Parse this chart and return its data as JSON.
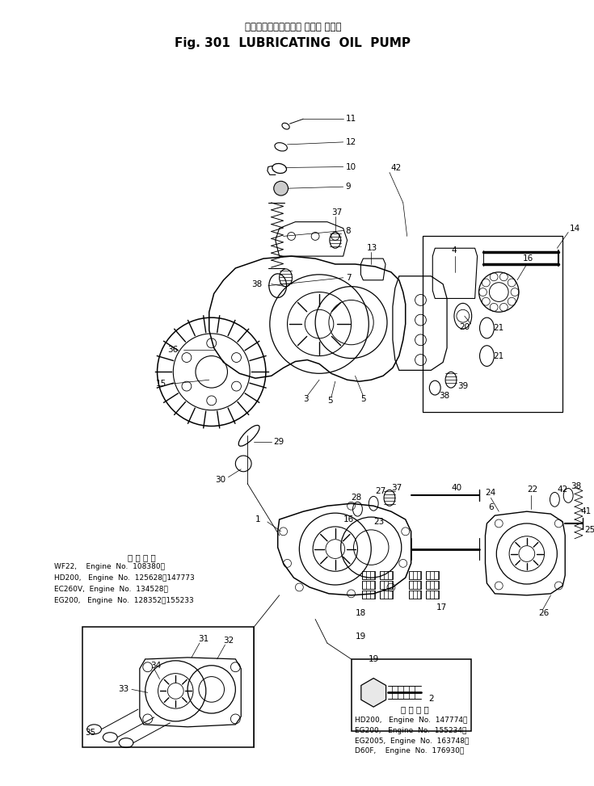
{
  "title_jp": "ルーブリケーティング オイル ポンプ",
  "title_en": "Fig. 301  LUBRICATING  OIL  PUMP",
  "bg": "#ffffff",
  "fg": "#000000",
  "fig_w": 7.35,
  "fig_h": 9.73,
  "dpi": 100,
  "info_left_title": "通 用 号 機",
  "info_left_lines": [
    "WF22,    Engine  No.  108380～",
    "HD200,   Engine  No.  125628～147773",
    "EC260V,  Engine  No.  134528～",
    "EG200,   Engine  No.  128352～155233"
  ],
  "info_right_title": "通 用 号 機",
  "info_right_lines": [
    "HD200,   Engine  No.  147774～",
    "EG200,   Engine  No.  155234～",
    "EG2005,  Engine  No.  163748～",
    "D60F,    Engine  No.  176930～"
  ]
}
